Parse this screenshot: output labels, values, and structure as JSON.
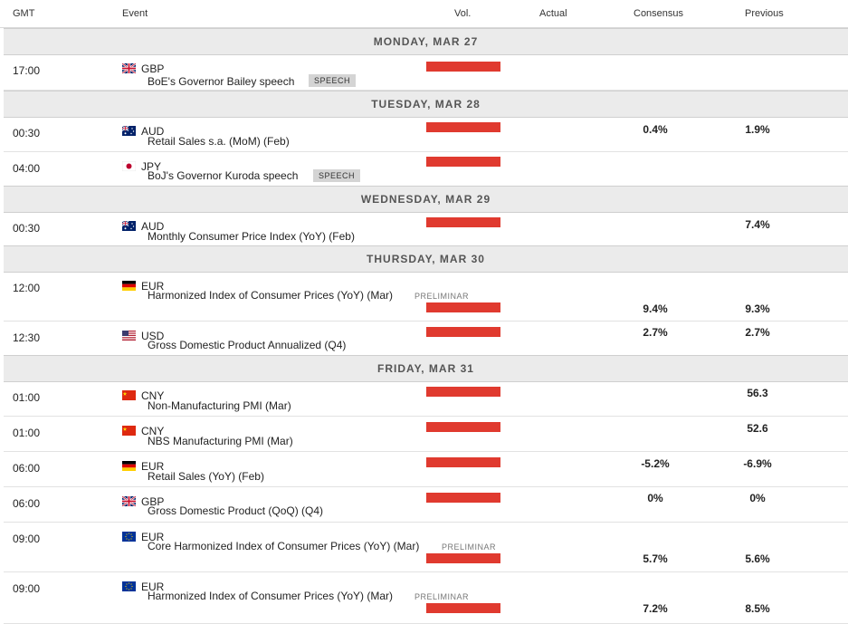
{
  "header": {
    "gmt": "GMT",
    "event": "Event",
    "vol": "Vol.",
    "actual": "Actual",
    "consensus": "Consensus",
    "previous": "Previous"
  },
  "days": [
    "MONDAY, MAR 27",
    "TUESDAY, MAR 28",
    "WEDNESDAY, MAR 29",
    "THURSDAY, MAR 30",
    "FRIDAY, MAR 31"
  ],
  "events": [
    {
      "time": "17:00",
      "currency": "GBP",
      "flag": "gb-flag",
      "name": "BoE's Governor Bailey speech",
      "badge": "SPEECH",
      "consensus": "",
      "previous": ""
    },
    {
      "time": "00:30",
      "currency": "AUD",
      "flag": "au-flag",
      "name": "Retail Sales s.a. (MoM) (Feb)",
      "badge": "",
      "consensus": "0.4%",
      "previous": "1.9%"
    },
    {
      "time": "04:00",
      "currency": "JPY",
      "flag": "jp-flag",
      "name": "BoJ's Governor Kuroda speech",
      "badge": "SPEECH",
      "consensus": "",
      "previous": ""
    },
    {
      "time": "00:30",
      "currency": "AUD",
      "flag": "au-flag",
      "name": "Monthly Consumer Price Index (YoY) (Feb)",
      "badge": "",
      "consensus": "",
      "previous": "7.4%"
    },
    {
      "time": "12:00",
      "currency": "EUR",
      "flag": "de-flag",
      "name": "Harmonized Index of Consumer Prices (YoY) (Mar)",
      "badge": "PRELIMINAR",
      "consensus": "9.4%",
      "previous": "9.3%"
    },
    {
      "time": "12:30",
      "currency": "USD",
      "flag": "us-flag",
      "name": "Gross Domestic Product Annualized (Q4)",
      "badge": "",
      "consensus": "2.7%",
      "previous": "2.7%"
    },
    {
      "time": "01:00",
      "currency": "CNY",
      "flag": "cn-flag",
      "name": "Non-Manufacturing PMI (Mar)",
      "badge": "",
      "consensus": "",
      "previous": "56.3"
    },
    {
      "time": "01:00",
      "currency": "CNY",
      "flag": "cn-flag",
      "name": "NBS Manufacturing PMI (Mar)",
      "badge": "",
      "consensus": "",
      "previous": "52.6"
    },
    {
      "time": "06:00",
      "currency": "EUR",
      "flag": "de-flag",
      "name": "Retail Sales (YoY) (Feb)",
      "badge": "",
      "consensus": "-5.2%",
      "previous": "-6.9%"
    },
    {
      "time": "06:00",
      "currency": "GBP",
      "flag": "gb-flag",
      "name": "Gross Domestic Product (QoQ) (Q4)",
      "badge": "",
      "consensus": "0%",
      "previous": "0%"
    },
    {
      "time": "09:00",
      "currency": "EUR",
      "flag": "eu-flag",
      "name": "Core Harmonized Index of Consumer Prices (YoY) (Mar)",
      "badge": "PRELIMINAR",
      "consensus": "5.7%",
      "previous": "5.6%"
    },
    {
      "time": "09:00",
      "currency": "EUR",
      "flag": "eu-flag",
      "name": "Harmonized Index of Consumer Prices (YoY) (Mar)",
      "badge": "PRELIMINAR",
      "consensus": "7.2%",
      "previous": "8.5%"
    }
  ],
  "colors": {
    "volatility_bar": "#e03a2f",
    "day_header_bg": "#ebebeb"
  }
}
